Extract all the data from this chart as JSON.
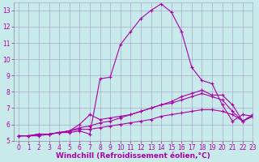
{
  "background_color": "#c8eaea",
  "grid_color": "#aaaacc",
  "line_color": "#aa00aa",
  "marker": "+",
  "xlim": [
    -0.5,
    23
  ],
  "ylim": [
    5,
    13.5
  ],
  "xticks": [
    0,
    1,
    2,
    3,
    4,
    5,
    6,
    7,
    8,
    9,
    10,
    11,
    12,
    13,
    14,
    15,
    16,
    17,
    18,
    19,
    20,
    21,
    22,
    23
  ],
  "yticks": [
    5,
    6,
    7,
    8,
    9,
    10,
    11,
    12,
    13
  ],
  "xlabel": "Windchill (Refroidissement éolien,°C)",
  "series": [
    [
      5.3,
      5.3,
      5.3,
      5.4,
      5.5,
      5.5,
      5.6,
      5.4,
      8.8,
      8.9,
      10.9,
      11.7,
      12.5,
      13.0,
      13.4,
      12.9,
      11.7,
      9.5,
      8.7,
      8.5,
      7.2,
      6.2,
      6.6,
      6.5
    ],
    [
      5.3,
      5.3,
      5.4,
      5.4,
      5.5,
      5.6,
      6.0,
      6.6,
      6.3,
      6.4,
      6.5,
      6.6,
      6.8,
      7.0,
      7.2,
      7.4,
      7.7,
      7.9,
      8.1,
      7.8,
      7.8,
      7.2,
      6.2,
      6.6
    ],
    [
      5.3,
      5.3,
      5.4,
      5.4,
      5.5,
      5.6,
      5.8,
      5.9,
      6.1,
      6.2,
      6.4,
      6.6,
      6.8,
      7.0,
      7.2,
      7.3,
      7.5,
      7.7,
      7.9,
      7.7,
      7.5,
      6.8,
      6.2,
      6.5
    ],
    [
      5.3,
      5.3,
      5.4,
      5.4,
      5.5,
      5.6,
      5.7,
      5.7,
      5.8,
      5.9,
      6.0,
      6.1,
      6.2,
      6.3,
      6.5,
      6.6,
      6.7,
      6.8,
      6.9,
      6.9,
      6.8,
      6.6,
      6.2,
      6.5
    ]
  ],
  "tick_fontsize": 5.5,
  "xlabel_fontsize": 6.5
}
